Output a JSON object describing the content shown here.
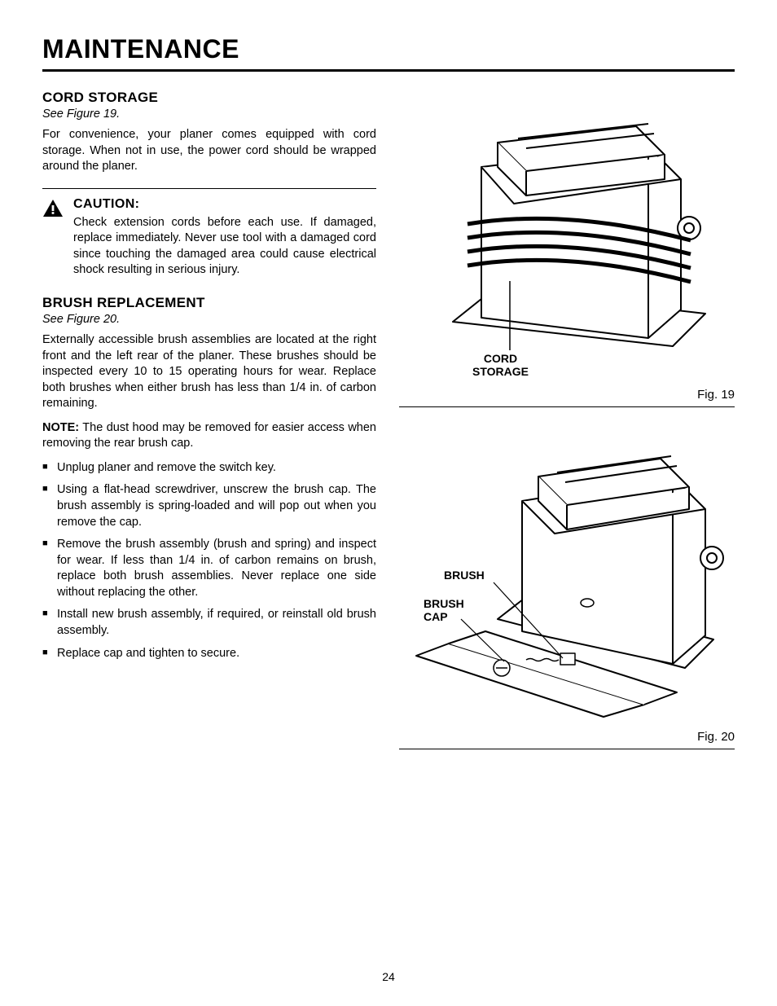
{
  "page": {
    "title": "MAINTENANCE",
    "number": "24"
  },
  "cord_storage": {
    "heading": "CORD STORAGE",
    "see": "See Figure 19.",
    "body": "For convenience, your planer comes equipped with cord storage. When not in use, the power cord should be wrapped around the planer."
  },
  "caution": {
    "label": "CAUTION:",
    "text": "Check extension cords before each use. If damaged, replace immediately. Never use tool with a damaged cord since touching the damaged area could cause electrical shock resulting in serious injury."
  },
  "brush": {
    "heading": "BRUSH REPLACEMENT",
    "see": "See Figure 20.",
    "p1": "Externally accessible brush assemblies are located at the right front and the left rear of the planer. These brushes should be inspected every 10 to 15 operating hours for wear. Replace both brushes when either brush has less than 1/4 in. of carbon remaining.",
    "note_label": "NOTE:",
    "note_text": "  The dust hood may be removed for easier access when removing the rear brush cap.",
    "items": [
      "Unplug planer and remove the switch key.",
      "Using a flat-head screwdriver, unscrew the brush cap. The brush assembly is spring-loaded and will pop out when you remove the cap.",
      "Remove the brush assembly (brush and spring) and inspect for wear. If less than 1/4 in. of carbon remains on brush, replace both brush assemblies. Never replace one side without replacing the other.",
      "Install new brush assembly, if required, or reinstall old brush assembly.",
      "Replace cap and tighten to secure."
    ]
  },
  "figures": {
    "fig19": {
      "caption": "Fig. 19",
      "callouts": {
        "cord_storage": "CORD\nSTORAGE"
      }
    },
    "fig20": {
      "caption": "Fig. 20",
      "callouts": {
        "brush": "BRUSH",
        "brush_cap": "BRUSH\nCAP"
      }
    }
  },
  "style": {
    "text_color": "#000000",
    "bg_color": "#ffffff",
    "line_color": "#000000"
  }
}
